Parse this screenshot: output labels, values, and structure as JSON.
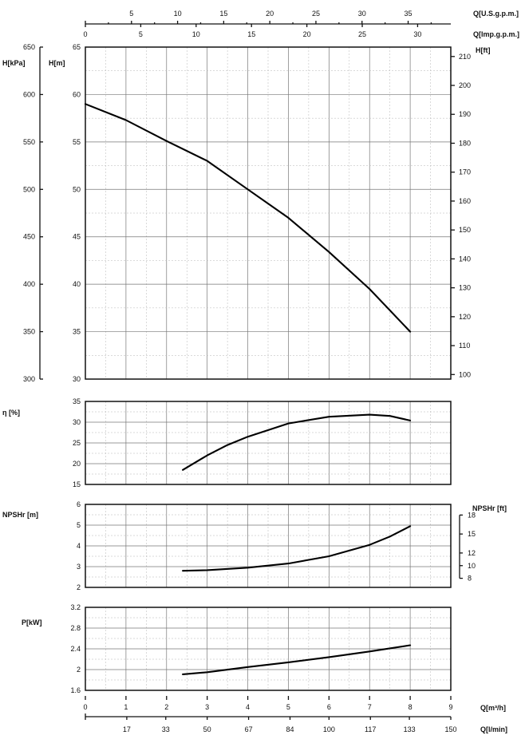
{
  "chart_data": [
    {
      "type": "line",
      "id": "head",
      "ylabel": "H[m]",
      "ylim": [
        30,
        65
      ],
      "y_ticks": [
        30,
        35,
        40,
        45,
        50,
        55,
        60,
        65
      ],
      "xlim": [
        0,
        9
      ],
      "grid": true,
      "left_secondary_axis": {
        "label": "H[kPa]",
        "ticks": [
          300,
          350,
          400,
          450,
          500,
          550,
          600,
          650
        ]
      },
      "right_secondary_axis": {
        "label": "H[ft]",
        "ticks": [
          100,
          110,
          120,
          130,
          140,
          150,
          160,
          170,
          180,
          190,
          200,
          210
        ]
      },
      "series": [
        {
          "x": [
            0,
            1,
            2,
            3,
            4,
            5,
            6,
            7,
            8
          ],
          "y": [
            59,
            57.3,
            55.1,
            53,
            50,
            47,
            43.4,
            39.5,
            35
          ]
        }
      ]
    },
    {
      "type": "line",
      "id": "efficiency",
      "ylabel": "η [%]",
      "ylim": [
        15,
        35
      ],
      "y_ticks": [
        15,
        20,
        25,
        30,
        35
      ],
      "xlim": [
        0,
        9
      ],
      "grid": true,
      "series": [
        {
          "x": [
            2.4,
            3,
            3.5,
            4,
            5,
            6,
            7,
            7.5,
            8
          ],
          "y": [
            18.5,
            22,
            24.5,
            26.5,
            29.7,
            31.3,
            31.8,
            31.5,
            30.4
          ]
        }
      ]
    },
    {
      "type": "line",
      "id": "npshr",
      "ylabel": "NPSHr [m]",
      "ylim": [
        2,
        6
      ],
      "y_ticks": [
        2,
        3,
        4,
        5,
        6
      ],
      "xlim": [
        0,
        9
      ],
      "grid": true,
      "right_secondary_axis": {
        "label": "NPSHr [ft]",
        "ticks": [
          8,
          10,
          12,
          15,
          18
        ]
      },
      "series": [
        {
          "x": [
            2.4,
            3,
            4,
            5,
            6,
            7,
            7.5,
            8
          ],
          "y": [
            2.8,
            2.83,
            2.95,
            3.15,
            3.5,
            4.05,
            4.45,
            4.95
          ]
        }
      ]
    },
    {
      "type": "line",
      "id": "power",
      "ylabel": "P[kW]",
      "ylim": [
        1.6,
        3.2
      ],
      "y_ticks": [
        "1.6",
        "2",
        "2.4",
        "2.8",
        "3.2"
      ],
      "xlim": [
        0,
        9
      ],
      "grid": true,
      "series": [
        {
          "x": [
            2.4,
            3,
            4,
            5,
            6,
            7,
            8
          ],
          "y": [
            1.91,
            1.95,
            2.05,
            2.14,
            2.24,
            2.35,
            2.47
          ]
        }
      ]
    }
  ],
  "top_axis_us": {
    "label": "Q[U.S.g.p.m.]",
    "ticks": [
      5,
      10,
      15,
      20,
      25,
      30,
      35
    ]
  },
  "top_axis_imp": {
    "label": "Q[Imp.g.p.m.]",
    "ticks": [
      0,
      5,
      10,
      15,
      20,
      25,
      30
    ]
  },
  "bottom_axis_m3h": {
    "label": "Q[m³/h]",
    "ticks": [
      0,
      1,
      2,
      3,
      4,
      5,
      6,
      7,
      8,
      9
    ]
  },
  "bottom_axis_lmin": {
    "label": "Q[l/min]",
    "ticks": [
      17,
      33,
      50,
      67,
      84,
      100,
      117,
      133,
      150
    ]
  }
}
